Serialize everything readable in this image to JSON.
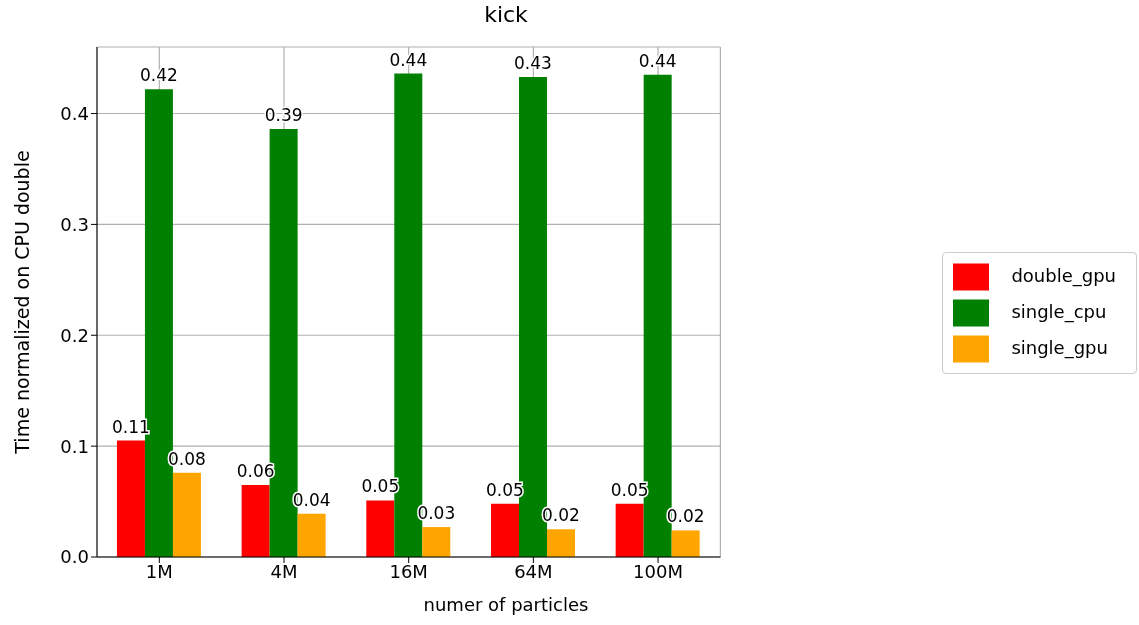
{
  "chart_data": {
    "type": "bar",
    "title": "kick",
    "xlabel": "numer of particles",
    "ylabel": "Time normalized on CPU double",
    "categories": [
      "1M",
      "4M",
      "16M",
      "64M",
      "100M"
    ],
    "series": [
      {
        "name": "double_gpu",
        "color": "#ff0000",
        "values": [
          0.105,
          0.065,
          0.051,
          0.048,
          0.048
        ],
        "value_labels": [
          "0.11",
          "0.06",
          "0.05",
          "0.05",
          "0.05"
        ]
      },
      {
        "name": "single_cpu",
        "color": "#008000",
        "values": [
          0.422,
          0.386,
          0.436,
          0.433,
          0.435
        ],
        "value_labels": [
          "0.42",
          "0.39",
          "0.44",
          "0.43",
          "0.44"
        ]
      },
      {
        "name": "single_gpu",
        "color": "#ffa500",
        "values": [
          0.076,
          0.039,
          0.027,
          0.025,
          0.024
        ],
        "value_labels": [
          "0.08",
          "0.04",
          "0.03",
          "0.02",
          "0.02"
        ]
      }
    ],
    "ylim": [
      0,
      0.46
    ],
    "yticks": [
      {
        "value": 0,
        "label": "0.0"
      },
      0.1,
      0.2,
      0.3,
      0.4
    ],
    "grid": true,
    "legend": "right"
  }
}
